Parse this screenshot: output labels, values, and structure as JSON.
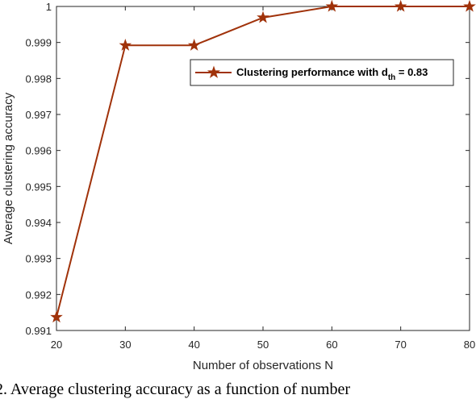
{
  "chart_data": {
    "type": "line",
    "x": [
      20,
      30,
      40,
      50,
      60,
      70,
      80
    ],
    "series": [
      {
        "name": "Clustering performance with d",
        "name_subscript": "th",
        "name_suffix": " = 0.83",
        "values": [
          0.99137,
          0.99892,
          0.99892,
          0.99969,
          1.0,
          1.0,
          1.0
        ],
        "color": "#a0320a",
        "marker": "star"
      }
    ],
    "xlabel": "Number of observations N",
    "ylabel": "Average clustering accuracy",
    "xlim": [
      20,
      80
    ],
    "ylim": [
      0.991,
      1.0
    ],
    "xticks": [
      20,
      30,
      40,
      50,
      60,
      70,
      80
    ],
    "yticks": [
      0.991,
      0.992,
      0.993,
      0.994,
      0.995,
      0.996,
      0.997,
      0.998,
      0.999,
      1
    ],
    "ytick_labels": [
      "0.991",
      "0.992",
      "0.993",
      "0.994",
      "0.995",
      "0.996",
      "0.997",
      "0.998",
      "0.999",
      "1"
    ],
    "grid": false,
    "legend_position": "top-right"
  },
  "caption": "2.  Average clustering accuracy as a function of number"
}
